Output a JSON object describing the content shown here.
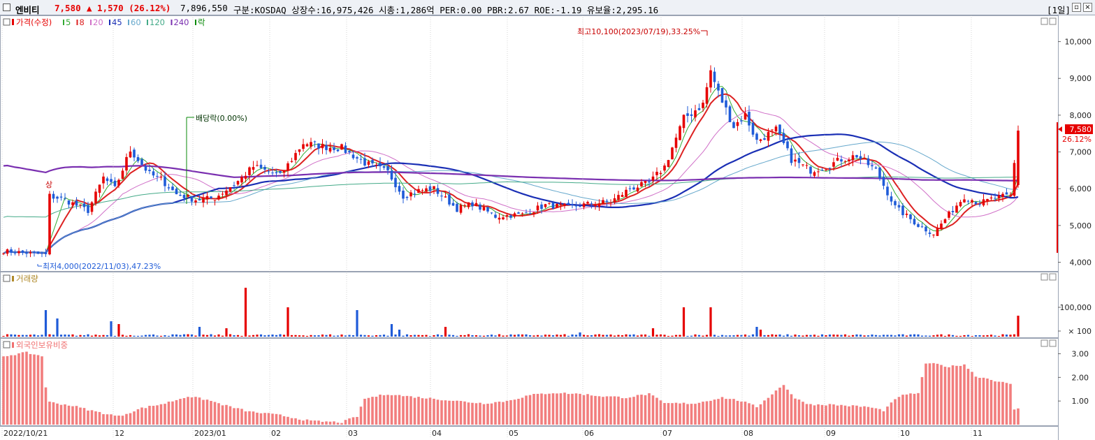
{
  "header": {
    "stock_name": "엔비티",
    "price": "7,580",
    "change": "▲ 1,570 (26.12%)",
    "volume": "7,896,550",
    "info": "구분:KOSDAQ 상장수:16,975,426 시총:1,286억 PER:0.00 PBR:2.67 ROE:-1.19 유보율:2,295.16",
    "period": "[1일]",
    "colors": {
      "up": "#e60000",
      "down": "#1f5bd8",
      "accent": "#cc0000"
    }
  },
  "legend": {
    "price_label": "가격(수정)",
    "ma_items": [
      {
        "label": "5",
        "color": "#33aa33"
      },
      {
        "label": "8",
        "color": "#dd2222"
      },
      {
        "label": "20",
        "color": "#d070c8"
      },
      {
        "label": "45",
        "color": "#1a2fb5"
      },
      {
        "label": "60",
        "color": "#66a8cc"
      },
      {
        "label": "120",
        "color": "#44aa88"
      },
      {
        "label": "240",
        "color": "#7a2fb0"
      }
    ],
    "ex_label": "락"
  },
  "annotations": {
    "high": "최고10,100(2023/07/19),33.25%",
    "low": "최저4,000(2022/11/03),47.23%",
    "dividend": "배당락(0.00%)",
    "sang": "상"
  },
  "panels": {
    "volume_title": "거래량",
    "foreign_title": "외국인보유비중",
    "price_tag": "7,580",
    "change_tag": "26.12%"
  },
  "chart_data": [
    {
      "type": "candlestick",
      "title": "가격(수정)",
      "ylim": [
        3800,
        10600
      ],
      "yticks": [
        "4,000",
        "5,000",
        "6,000",
        "7,000",
        "8,000",
        "9,000",
        "10,000"
      ],
      "x_labels": [
        "2022/10/21",
        "12",
        "2023/01",
        "02",
        "03",
        "04",
        "05",
        "06",
        "07",
        "08",
        "09",
        "10",
        "11"
      ],
      "close_keypoints": [
        [
          0,
          4300
        ],
        [
          6,
          4250
        ],
        [
          11,
          4200
        ],
        [
          12,
          5800
        ],
        [
          16,
          5700
        ],
        [
          22,
          5400
        ],
        [
          26,
          6300
        ],
        [
          29,
          6000
        ],
        [
          33,
          7050
        ],
        [
          38,
          6400
        ],
        [
          41,
          6250
        ],
        [
          45,
          5850
        ],
        [
          50,
          5700
        ],
        [
          55,
          5750
        ],
        [
          61,
          6200
        ],
        [
          65,
          6600
        ],
        [
          72,
          6350
        ],
        [
          78,
          7250
        ],
        [
          83,
          7150
        ],
        [
          88,
          7100
        ],
        [
          94,
          6700
        ],
        [
          100,
          6450
        ],
        [
          104,
          5800
        ],
        [
          108,
          5950
        ],
        [
          112,
          6000
        ],
        [
          118,
          5450
        ],
        [
          122,
          5600
        ],
        [
          128,
          5250
        ],
        [
          135,
          5300
        ],
        [
          141,
          5550
        ],
        [
          147,
          5500
        ],
        [
          152,
          5580
        ],
        [
          158,
          5650
        ],
        [
          163,
          6000
        ],
        [
          168,
          6150
        ],
        [
          172,
          6600
        ],
        [
          177,
          7900
        ],
        [
          182,
          8300
        ],
        [
          184,
          9200
        ],
        [
          186,
          8600
        ],
        [
          190,
          7700
        ],
        [
          193,
          8000
        ],
        [
          196,
          7300
        ],
        [
          201,
          7600
        ],
        [
          205,
          6800
        ],
        [
          210,
          6500
        ],
        [
          214,
          6600
        ],
        [
          218,
          6800
        ],
        [
          222,
          6900
        ],
        [
          227,
          6500
        ],
        [
          232,
          5500
        ],
        [
          238,
          5000
        ],
        [
          242,
          4780
        ],
        [
          246,
          5300
        ],
        [
          250,
          5800
        ],
        [
          254,
          5600
        ],
        [
          258,
          5750
        ],
        [
          262,
          5800
        ],
        [
          264,
          7580
        ]
      ],
      "last": {
        "price": 7580,
        "change_pct": 26.12
      },
      "ma_periods": [
        5,
        8,
        20,
        45,
        60,
        120,
        240
      ]
    },
    {
      "type": "bar",
      "title": "거래량",
      "yticks": [
        "100,000",
        "× 100"
      ]
    },
    {
      "type": "bar",
      "title": "외국인보유비중",
      "ylim": [
        0,
        3.4
      ],
      "yticks": [
        "1.00",
        "2.00",
        "3.00"
      ],
      "keypoints": [
        [
          0,
          2.9
        ],
        [
          6,
          3.05
        ],
        [
          10,
          2.9
        ],
        [
          11,
          1.6
        ],
        [
          12,
          0.95
        ],
        [
          18,
          0.8
        ],
        [
          24,
          0.55
        ],
        [
          30,
          0.35
        ],
        [
          36,
          0.7
        ],
        [
          42,
          0.9
        ],
        [
          48,
          1.2
        ],
        [
          53,
          1.05
        ],
        [
          58,
          0.8
        ],
        [
          64,
          0.55
        ],
        [
          72,
          0.4
        ],
        [
          80,
          0.15
        ],
        [
          88,
          0.1
        ],
        [
          92,
          0.35
        ],
        [
          94,
          1.1
        ],
        [
          100,
          1.3
        ],
        [
          105,
          1.2
        ],
        [
          112,
          1.1
        ],
        [
          118,
          1.0
        ],
        [
          125,
          0.9
        ],
        [
          131,
          1.0
        ],
        [
          137,
          1.25
        ],
        [
          143,
          1.35
        ],
        [
          150,
          1.3
        ],
        [
          156,
          1.2
        ],
        [
          162,
          1.15
        ],
        [
          168,
          1.3
        ],
        [
          172,
          0.9
        ],
        [
          180,
          0.9
        ],
        [
          187,
          1.15
        ],
        [
          192,
          1.0
        ],
        [
          196,
          0.75
        ],
        [
          200,
          1.3
        ],
        [
          203,
          1.7
        ],
        [
          206,
          1.1
        ],
        [
          210,
          0.85
        ],
        [
          215,
          0.85
        ],
        [
          220,
          0.8
        ],
        [
          225,
          0.75
        ],
        [
          229,
          0.6
        ],
        [
          233,
          1.2
        ],
        [
          238,
          1.35
        ],
        [
          240,
          2.6
        ],
        [
          243,
          2.55
        ],
        [
          246,
          2.45
        ],
        [
          250,
          2.55
        ],
        [
          253,
          2.05
        ],
        [
          256,
          1.95
        ],
        [
          262,
          1.7
        ],
        [
          263,
          0.65
        ],
        [
          264,
          0.7
        ]
      ]
    }
  ]
}
